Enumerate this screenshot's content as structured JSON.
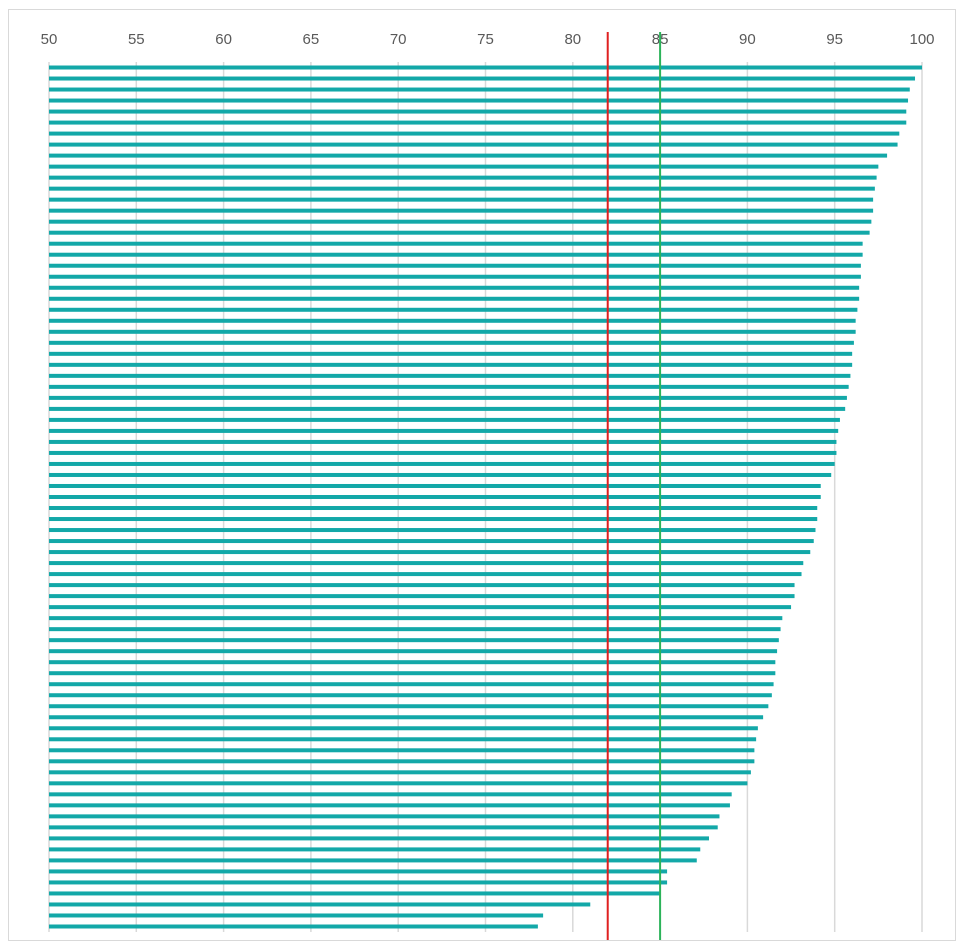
{
  "chart_data": {
    "type": "bar",
    "orientation": "horizontal",
    "title": "",
    "xlabel": "",
    "ylabel": "",
    "xlim": [
      50,
      100
    ],
    "x_ticks": [
      "50",
      "55",
      "60",
      "65",
      "70",
      "75",
      "80",
      "85",
      "90",
      "95",
      "100"
    ],
    "x_axis_position": "top",
    "grid": true,
    "legend": "none",
    "bar_color": "#13a8a8",
    "values": [
      100.0,
      99.6,
      99.3,
      99.2,
      99.1,
      99.1,
      98.7,
      98.6,
      98.0,
      97.5,
      97.4,
      97.3,
      97.2,
      97.2,
      97.1,
      97.0,
      96.6,
      96.6,
      96.5,
      96.5,
      96.4,
      96.4,
      96.3,
      96.2,
      96.2,
      96.1,
      96.0,
      96.0,
      95.9,
      95.8,
      95.7,
      95.6,
      95.3,
      95.2,
      95.1,
      95.1,
      95.0,
      94.8,
      94.2,
      94.2,
      94.0,
      94.0,
      93.9,
      93.8,
      93.6,
      93.2,
      93.1,
      92.7,
      92.7,
      92.5,
      92.0,
      91.9,
      91.8,
      91.7,
      91.6,
      91.6,
      91.5,
      91.4,
      91.2,
      90.9,
      90.6,
      90.5,
      90.4,
      90.4,
      90.2,
      90.0,
      89.1,
      89.0,
      88.4,
      88.3,
      87.8,
      87.3,
      87.1,
      85.4,
      85.4,
      85.0,
      81.0,
      78.3,
      78.0
    ],
    "reference_lines": [
      {
        "value": 82,
        "color": "#e02020"
      },
      {
        "value": 85,
        "color": "#2cb35a"
      }
    ]
  }
}
